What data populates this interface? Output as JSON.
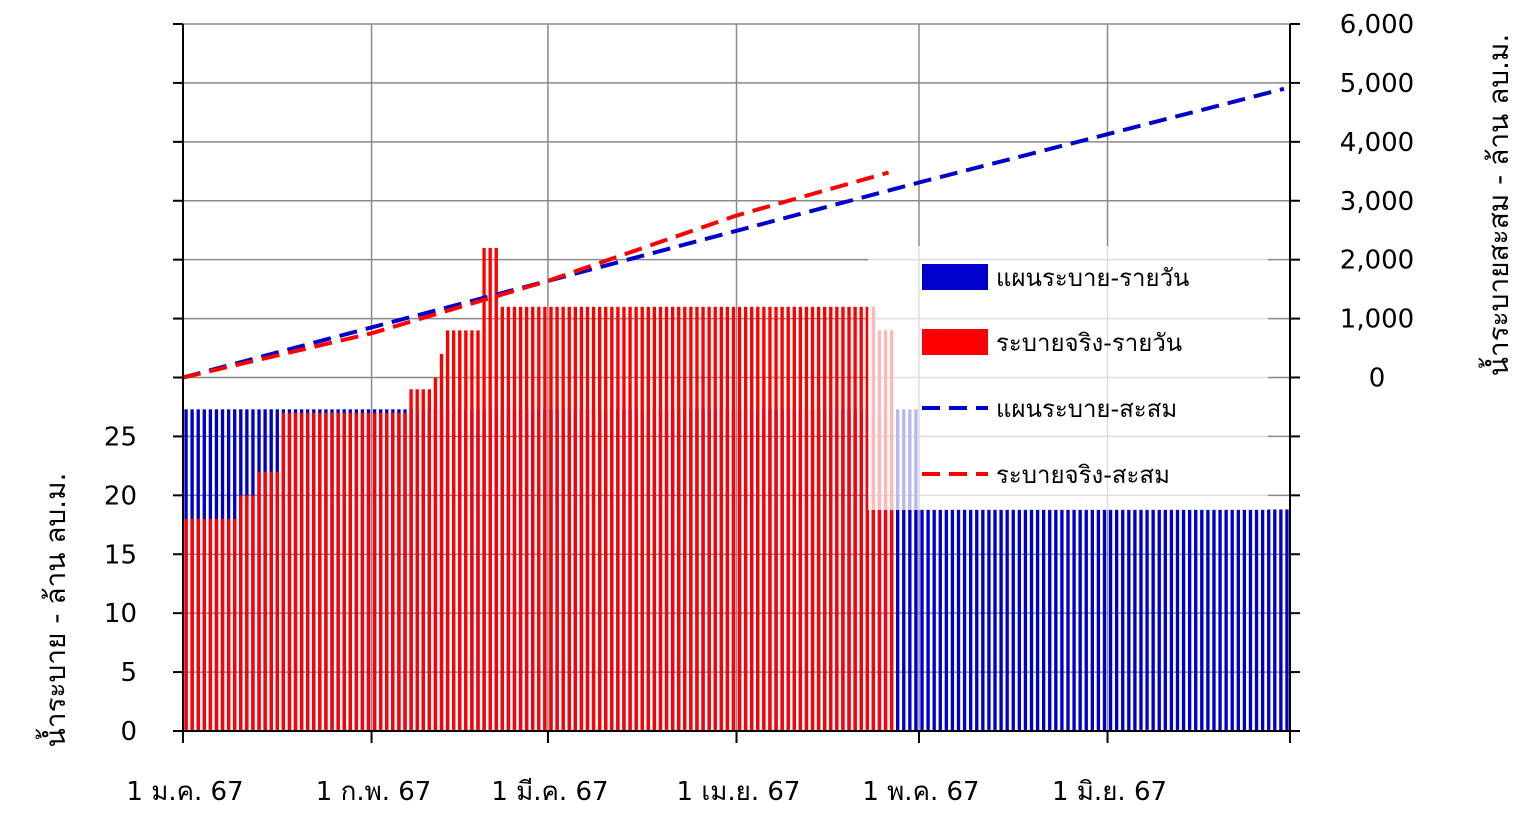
{
  "chart_data": {
    "type": "bar+line",
    "grid": true,
    "legend_position": "right",
    "x": {
      "unit": "day",
      "start": "2024-01-01",
      "end": "2024-06-30",
      "tick_labels": [
        "1 ม.ค. 67",
        "1 ก.พ. 67",
        "1 มี.ค. 67",
        "1 เม.ย. 67",
        "1 พ.ค. 67",
        "1 มิ.ย. 67"
      ],
      "tick_dates": [
        "2024-01-01",
        "2024-02-01",
        "2024-03-01",
        "2024-04-01",
        "2024-05-01",
        "2024-06-01"
      ]
    },
    "y_left": {
      "label": "น้ำระบาย - ล้าน ลบ.ม.",
      "range": [
        0,
        60
      ],
      "ticks": [
        0,
        5,
        10,
        15,
        20,
        25
      ],
      "tick_labels": [
        "0",
        "5",
        "10",
        "15",
        "20",
        "25"
      ]
    },
    "y_right": {
      "label": "น้ำระบายสะสม - ล้าน ลบ.ม.",
      "range": [
        -6000,
        6000
      ],
      "ticks": [
        0,
        1000,
        2000,
        3000,
        4000,
        5000,
        6000
      ],
      "tick_labels": [
        "0",
        "1,000",
        "2,000",
        "3,000",
        "4,000",
        "5,000",
        "6,000"
      ]
    },
    "series": [
      {
        "name": "แผนระบาย-รายวัน",
        "type": "bar",
        "axis": "left",
        "color": "#0000cc",
        "segments": [
          {
            "from": "2024-01-01",
            "to": "2024-04-30",
            "value": 27.3
          },
          {
            "from": "2024-05-01",
            "to": "2024-06-30",
            "value": 18.8
          }
        ]
      },
      {
        "name": "ระบายจริง-รายวัน",
        "type": "bar",
        "axis": "left",
        "color": "#ff0000",
        "segments": [
          {
            "from": "2024-01-01",
            "to": "2024-01-09",
            "value": 18
          },
          {
            "from": "2024-01-10",
            "to": "2024-01-12",
            "value": 20
          },
          {
            "from": "2024-01-13",
            "to": "2024-01-16",
            "value": 22
          },
          {
            "from": "2024-01-17",
            "to": "2024-02-06",
            "value": 27
          },
          {
            "from": "2024-02-07",
            "to": "2024-02-10",
            "value": 29
          },
          {
            "from": "2024-02-11",
            "to": "2024-02-11",
            "value": 30
          },
          {
            "from": "2024-02-12",
            "to": "2024-02-12",
            "value": 32
          },
          {
            "from": "2024-02-13",
            "to": "2024-02-18",
            "value": 34
          },
          {
            "from": "2024-02-19",
            "to": "2024-02-21",
            "value": 41
          },
          {
            "from": "2024-02-22",
            "to": "2024-04-23",
            "value": 36
          },
          {
            "from": "2024-04-24",
            "to": "2024-04-26",
            "value": 34
          }
        ]
      },
      {
        "name": "แผนระบาย-สะสม",
        "type": "line",
        "dash": true,
        "axis": "right",
        "color": "#0000cc",
        "points": [
          {
            "date": "2024-01-01",
            "value": 0
          },
          {
            "date": "2024-02-01",
            "value": 850
          },
          {
            "date": "2024-03-01",
            "value": 1640
          },
          {
            "date": "2024-04-01",
            "value": 2490
          },
          {
            "date": "2024-05-01",
            "value": 3310
          },
          {
            "date": "2024-06-01",
            "value": 4130
          },
          {
            "date": "2024-06-30",
            "value": 4900
          }
        ]
      },
      {
        "name": "ระบายจริง-สะสม",
        "type": "line",
        "dash": true,
        "axis": "right",
        "color": "#ff0000",
        "points": [
          {
            "date": "2024-01-01",
            "value": 0
          },
          {
            "date": "2024-02-01",
            "value": 750
          },
          {
            "date": "2024-03-01",
            "value": 1640
          },
          {
            "date": "2024-04-01",
            "value": 2750
          },
          {
            "date": "2024-04-26",
            "value": 3480
          }
        ]
      }
    ]
  }
}
